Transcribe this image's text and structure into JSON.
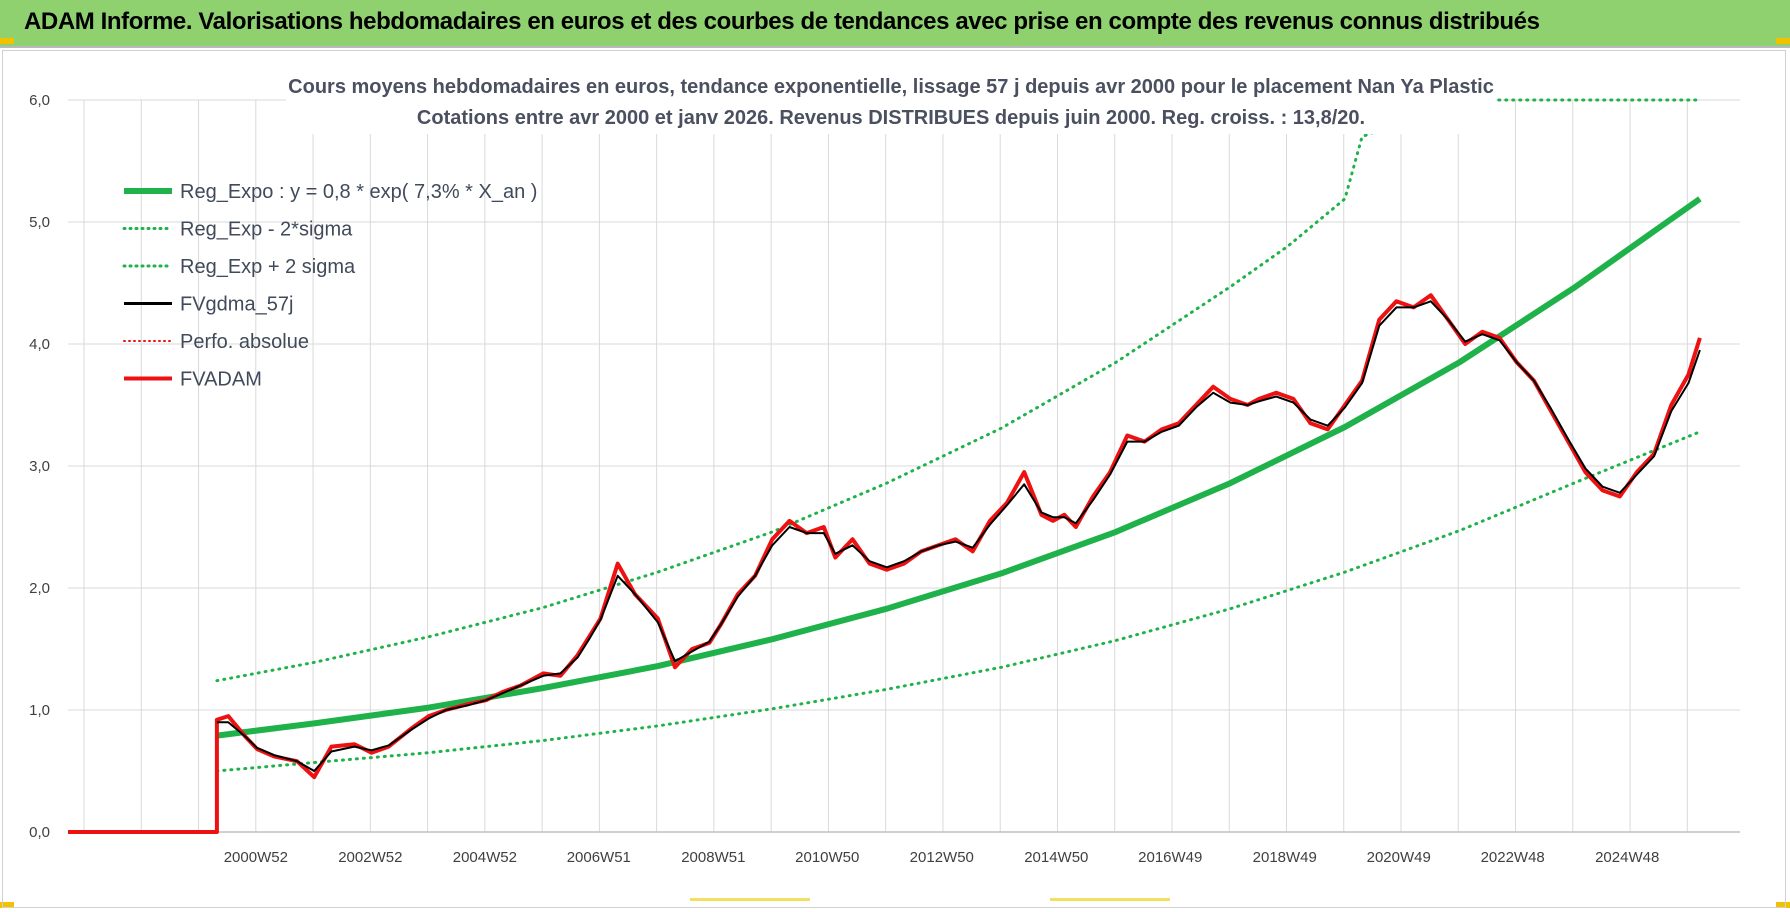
{
  "banner": {
    "title": "ADAM Informe. Valorisations hebdomadaires en euros et des courbes de tendances avec prise en compte des revenus connus distribués"
  },
  "colors": {
    "banner_bg": "#8fd16f",
    "regression": "#1fb24a",
    "bands": "#1fb24a",
    "smoothed": "#000000",
    "fvadam": "#ee1111",
    "perfo": "#ee1111"
  },
  "chart_data": {
    "type": "line",
    "title": "Cours moyens hebdomadaires en euros, tendance exponentielle, lissage 57 j depuis avr 2000 pour le placement Nan Ya Plastic",
    "subtitle": "Cotations entre avr 2000 et janv 2026. Revenus DISTRIBUES depuis juin 2000. Reg. croiss. : 13,8/20.",
    "xlabel": "",
    "ylabel": "",
    "ylim": [
      0,
      6
    ],
    "y_ticks": [
      "0,0",
      "1,0",
      "2,0",
      "3,0",
      "4,0",
      "5,0",
      "6,0"
    ],
    "x_tick_labels": [
      "2000W52",
      "2002W52",
      "2004W52",
      "2006W51",
      "2008W51",
      "2010W50",
      "2012W50",
      "2014W50",
      "2016W49",
      "2018W49",
      "2020W49",
      "2022W48",
      "2024W48"
    ],
    "x_tick_years": [
      2000.98,
      2002.98,
      2004.98,
      2006.97,
      2008.97,
      2010.96,
      2012.96,
      2014.96,
      2016.95,
      2018.95,
      2020.94,
      2022.93,
      2024.93
    ],
    "x_range_years": [
      1997.7,
      2026.9
    ],
    "grid": true,
    "legend": {
      "placement": "top-left",
      "entries": [
        {
          "label": "Reg_Expo : y = 0,8 * exp( 7,3% *  X_an )",
          "style": "solid-green"
        },
        {
          "label": "Reg_Exp - 2*sigma",
          "style": "dotted-green"
        },
        {
          "label": "Reg_Exp + 2 sigma",
          "style": "dotted-green"
        },
        {
          "label": "FVgdma_57j",
          "style": "solid-black"
        },
        {
          "label": "Perfo. absolue",
          "style": "dotted-red"
        },
        {
          "label": "FVADAM",
          "style": "solid-red"
        }
      ]
    },
    "regression": {
      "name": "Reg_Expo : y = 0,8 * exp( 7,3% *  X_an )",
      "x": [
        2000.3,
        2002.0,
        2004.0,
        2006.0,
        2008.0,
        2010.0,
        2012.0,
        2014.0,
        2016.0,
        2018.0,
        2020.0,
        2022.0,
        2024.0,
        2026.2
      ],
      "y": [
        0.79,
        0.89,
        1.02,
        1.18,
        1.36,
        1.58,
        1.83,
        2.12,
        2.46,
        2.86,
        3.32,
        3.85,
        4.46,
        5.19
      ]
    },
    "band_upper": {
      "name": "Reg_Exp + 2 sigma",
      "x": [
        2000.3,
        2002.0,
        2004.0,
        2006.0,
        2008.0,
        2010.0,
        2012.0,
        2014.0,
        2016.0,
        2018.0,
        2019.0,
        2020.0,
        2020.3,
        2022.0,
        2024.0,
        2026.2
      ],
      "y": [
        1.24,
        1.39,
        1.6,
        1.84,
        2.13,
        2.46,
        2.86,
        3.31,
        3.85,
        4.47,
        4.8,
        5.19,
        5.7,
        6.0,
        6.0,
        6.0
      ]
    },
    "band_lower": {
      "name": "Reg_Exp - 2*sigma",
      "x": [
        2000.3,
        2002.0,
        2004.0,
        2006.0,
        2008.0,
        2010.0,
        2012.0,
        2014.0,
        2016.0,
        2018.0,
        2020.0,
        2022.0,
        2024.0,
        2026.2
      ],
      "y": [
        0.5,
        0.57,
        0.65,
        0.75,
        0.87,
        1.01,
        1.17,
        1.35,
        1.57,
        1.83,
        2.13,
        2.47,
        2.86,
        3.28
      ]
    },
    "fvadam": {
      "name": "FVADAM",
      "x": [
        1997.7,
        2000.3,
        2000.3,
        2000.5,
        2000.8,
        2001.0,
        2001.3,
        2001.7,
        2002.0,
        2002.3,
        2002.7,
        2003.0,
        2003.3,
        2003.7,
        2004.0,
        2004.3,
        2004.7,
        2005.0,
        2005.3,
        2005.6,
        2006.0,
        2006.3,
        2006.6,
        2006.8,
        2007.0,
        2007.3,
        2007.6,
        2008.0,
        2008.3,
        2008.6,
        2008.9,
        2009.1,
        2009.4,
        2009.7,
        2010.0,
        2010.3,
        2010.6,
        2010.9,
        2011.1,
        2011.4,
        2011.7,
        2012.0,
        2012.3,
        2012.6,
        2012.9,
        2013.2,
        2013.5,
        2013.8,
        2014.1,
        2014.4,
        2014.7,
        2014.9,
        2015.1,
        2015.3,
        2015.6,
        2015.9,
        2016.2,
        2016.5,
        2016.8,
        2017.1,
        2017.4,
        2017.7,
        2018.0,
        2018.3,
        2018.5,
        2018.8,
        2019.1,
        2019.4,
        2019.7,
        2020.0,
        2020.3,
        2020.6,
        2020.9,
        2021.2,
        2021.5,
        2021.8,
        2022.1,
        2022.4,
        2022.7,
        2023.0,
        2023.3,
        2023.6,
        2023.9,
        2024.2,
        2024.5,
        2024.8,
        2025.1,
        2025.4,
        2025.7,
        2026.0,
        2026.2
      ],
      "y": [
        0.0,
        0.0,
        0.92,
        0.95,
        0.78,
        0.68,
        0.62,
        0.58,
        0.45,
        0.7,
        0.72,
        0.65,
        0.7,
        0.85,
        0.95,
        1.0,
        1.05,
        1.08,
        1.15,
        1.2,
        1.3,
        1.28,
        1.45,
        1.6,
        1.75,
        2.2,
        1.95,
        1.75,
        1.35,
        1.5,
        1.55,
        1.7,
        1.95,
        2.1,
        2.4,
        2.55,
        2.45,
        2.5,
        2.25,
        2.4,
        2.2,
        2.15,
        2.2,
        2.3,
        2.35,
        2.4,
        2.3,
        2.55,
        2.7,
        2.95,
        2.6,
        2.55,
        2.6,
        2.5,
        2.75,
        2.95,
        3.25,
        3.2,
        3.3,
        3.35,
        3.5,
        3.65,
        3.55,
        3.5,
        3.55,
        3.6,
        3.55,
        3.35,
        3.3,
        3.5,
        3.7,
        4.2,
        4.35,
        4.3,
        4.4,
        4.2,
        4.0,
        4.1,
        4.05,
        3.85,
        3.7,
        3.45,
        3.2,
        2.95,
        2.8,
        2.75,
        2.95,
        3.1,
        3.5,
        3.75,
        4.05
      ]
    },
    "fvgdma_57j": {
      "name": "FVgdma_57j",
      "x": [
        2000.3,
        2000.5,
        2000.8,
        2001.0,
        2001.3,
        2001.7,
        2002.0,
        2002.3,
        2002.7,
        2003.0,
        2003.3,
        2003.7,
        2004.0,
        2004.3,
        2004.7,
        2005.0,
        2005.3,
        2005.6,
        2006.0,
        2006.3,
        2006.6,
        2006.8,
        2007.0,
        2007.3,
        2007.6,
        2008.0,
        2008.3,
        2008.6,
        2008.9,
        2009.1,
        2009.4,
        2009.7,
        2010.0,
        2010.3,
        2010.6,
        2010.9,
        2011.1,
        2011.4,
        2011.7,
        2012.0,
        2012.3,
        2012.6,
        2012.9,
        2013.2,
        2013.5,
        2013.8,
        2014.1,
        2014.4,
        2014.7,
        2014.9,
        2015.1,
        2015.3,
        2015.6,
        2015.9,
        2016.2,
        2016.5,
        2016.8,
        2017.1,
        2017.4,
        2017.7,
        2018.0,
        2018.3,
        2018.5,
        2018.8,
        2019.1,
        2019.4,
        2019.7,
        2020.0,
        2020.3,
        2020.6,
        2020.9,
        2021.2,
        2021.5,
        2021.8,
        2022.1,
        2022.4,
        2022.7,
        2023.0,
        2023.3,
        2023.6,
        2023.9,
        2024.2,
        2024.5,
        2024.8,
        2025.1,
        2025.4,
        2025.7,
        2026.0,
        2026.2
      ],
      "y": [
        0.9,
        0.9,
        0.78,
        0.69,
        0.63,
        0.58,
        0.5,
        0.66,
        0.7,
        0.67,
        0.71,
        0.84,
        0.93,
        1.0,
        1.04,
        1.08,
        1.14,
        1.2,
        1.28,
        1.3,
        1.43,
        1.58,
        1.74,
        2.1,
        1.95,
        1.72,
        1.4,
        1.48,
        1.56,
        1.7,
        1.93,
        2.1,
        2.35,
        2.5,
        2.45,
        2.45,
        2.28,
        2.35,
        2.22,
        2.17,
        2.22,
        2.3,
        2.35,
        2.38,
        2.33,
        2.52,
        2.68,
        2.85,
        2.62,
        2.58,
        2.58,
        2.53,
        2.72,
        2.93,
        3.2,
        3.2,
        3.28,
        3.33,
        3.48,
        3.6,
        3.52,
        3.5,
        3.53,
        3.57,
        3.52,
        3.38,
        3.33,
        3.48,
        3.68,
        4.15,
        4.3,
        4.3,
        4.35,
        4.2,
        4.02,
        4.08,
        4.03,
        3.85,
        3.7,
        3.47,
        3.22,
        2.98,
        2.83,
        2.78,
        2.93,
        3.08,
        3.45,
        3.68,
        3.95
      ]
    }
  }
}
